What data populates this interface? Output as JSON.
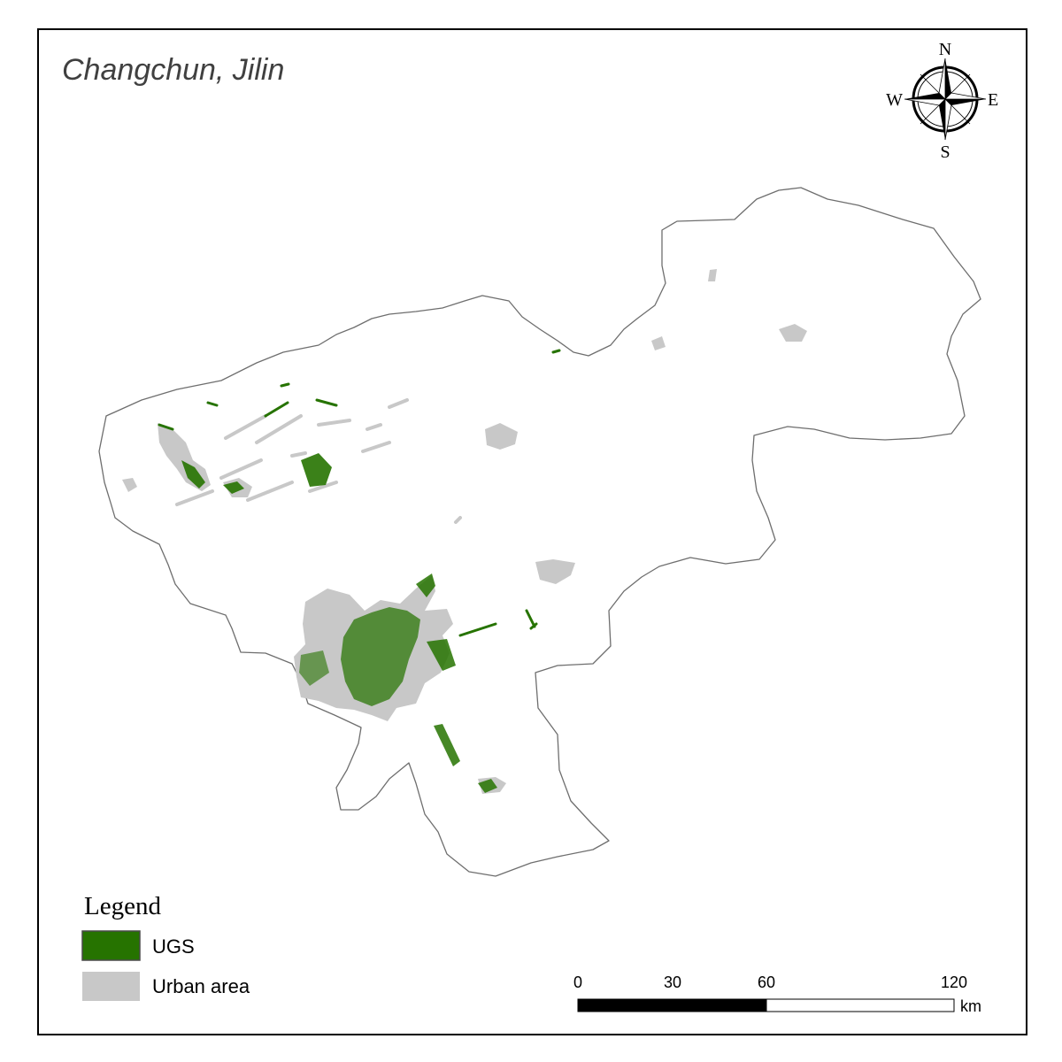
{
  "map": {
    "title": "Changchun, Jilin",
    "colors": {
      "ugs": "#267300",
      "urban": "#c8c8c8",
      "boundary": "#6e6e6e"
    }
  },
  "compass": {
    "north": "N",
    "south": "S",
    "east": "E",
    "west": "W",
    "icon": "compass-rose-icon"
  },
  "legend": {
    "title": "Legend",
    "items": [
      {
        "label": "UGS",
        "color": "#267300"
      },
      {
        "label": "Urban area",
        "color": "#c8c8c8"
      }
    ]
  },
  "scale_bar": {
    "ticks": [
      "0",
      "30",
      "60",
      "120"
    ],
    "unit": "km"
  }
}
